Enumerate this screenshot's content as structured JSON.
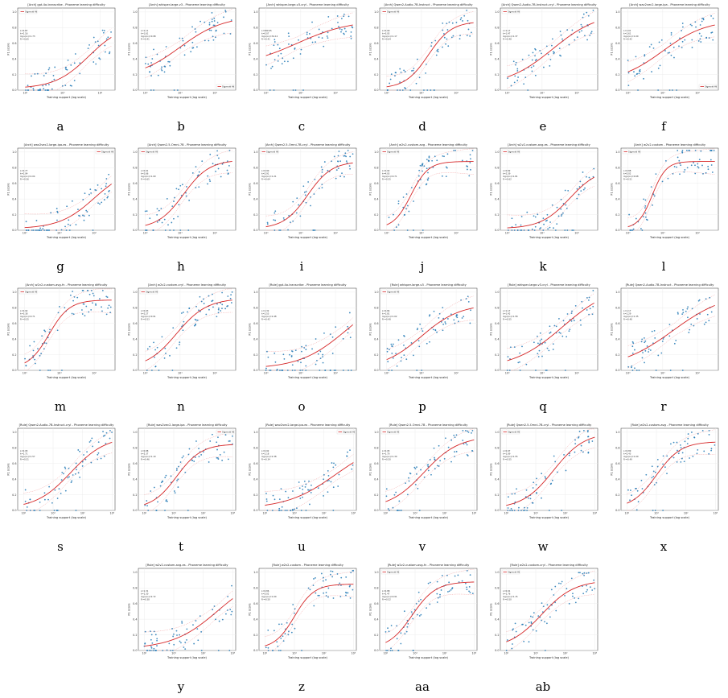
{
  "figure": {
    "common": {
      "xlabel": "Training support (log scale)",
      "ylabel": "F1 score",
      "legend_label": "Sigmoid fit",
      "yticks": [
        "0.0",
        "0.2",
        "0.4",
        "0.6",
        "0.8",
        "1.0"
      ]
    },
    "panels": [
      {
        "letter": "a",
        "title": "[Arch] gpt-4o-transcribe - Phoneme learning difficulty",
        "legend": "top-left",
        "xticks": [
          "10⁰",
          "10¹",
          "10²"
        ],
        "xmax": 2.3,
        "fit": {
          "L": 0.85,
          "k": 2.2,
          "x0": 1.7,
          "b": 0.02
        },
        "stats": [
          "L=0.87",
          "k=2.16",
          "log₁₀(x₀)=1.73",
          "R²=0.65"
        ]
      },
      {
        "letter": "b",
        "title": "[Arch] whisper-large-v3 - Phoneme learning difficulty",
        "legend": "bottom-right",
        "xticks": [
          "10⁰",
          "10¹",
          "10²"
        ],
        "xmax": 2.5,
        "fit": {
          "L": 0.95,
          "k": 1.6,
          "x0": 1.0,
          "b": 0.15
        },
        "stats": [
          "L=1.11",
          "k=1.61",
          "log₁₀(x₀)=0.98",
          "R²=0.41"
        ]
      },
      {
        "letter": "c",
        "title": "[Arch] whisper-large-v3-cryl - Phoneme learning difficulty",
        "legend": "none",
        "xticks": [
          "10⁰",
          "10¹",
          "10²"
        ],
        "xmax": 2.5,
        "fit": {
          "L": 0.9,
          "k": 1.3,
          "x0": 0.9,
          "b": 0.3
        },
        "stats": [
          "L=999.95",
          "k=0.07",
          "log₁₀(x₀)=34.12",
          "R²=0.41"
        ]
      },
      {
        "letter": "d",
        "title": "[Arch] Qwen2-Audio-7B-Instruct - Phoneme learning difficulty",
        "legend": "top-left",
        "xticks": [
          "10⁰",
          "10¹",
          "10²"
        ],
        "xmax": 2.5,
        "fit": {
          "L": 0.88,
          "k": 3.0,
          "x0": 1.2,
          "b": 0.02
        },
        "stats": [
          "L=0.90",
          "k=3.05",
          "log₁₀(x₀)=1.17",
          "R²=0.64"
        ]
      },
      {
        "letter": "e",
        "title": "[Arch] Qwen2-Audio-7B-Instruct-cryl - Phoneme learning difficulty",
        "legend": "top-left",
        "xticks": [
          "10⁰",
          "10¹",
          "10²"
        ],
        "xmax": 2.5,
        "fit": {
          "L": 1.0,
          "k": 1.5,
          "x0": 1.3,
          "b": 0.05
        },
        "stats": [
          "L=1.17",
          "k=1.47",
          "log₁₀(x₀)=1.37",
          "R²=0.48"
        ]
      },
      {
        "letter": "f",
        "title": "[Arch] wav2vec2-large-ipa - Phoneme learning difficulty",
        "legend": "bottom-right",
        "xticks": [
          "10⁰",
          "10¹",
          "10²"
        ],
        "xmax": 2.5,
        "fit": {
          "L": 0.9,
          "k": 1.6,
          "x0": 1.0,
          "b": 0.1
        },
        "stats": [
          "L=1.01",
          "k=1.61",
          "log₁₀(x₀)=1.00",
          "R²=0.42"
        ]
      },
      {
        "letter": "g",
        "title": "[Arch] wav2vec2-large-ipa-es - Phoneme learning difficulty",
        "legend": "top-right",
        "xticks": [
          "10⁰",
          "10¹",
          "10²"
        ],
        "xmax": 2.5,
        "fit": {
          "L": 0.8,
          "k": 2.0,
          "x0": 2.0,
          "b": 0.02
        },
        "stats": [
          "L=0.77",
          "k=2.04",
          "log₁₀(x₀)=2.04",
          "R²=0.56"
        ]
      },
      {
        "letter": "h",
        "title": "[Arch] Qwen2.5-Omni-7B - Phoneme learning difficulty",
        "legend": "top-left",
        "xticks": [
          "10⁰",
          "10¹",
          "10²"
        ],
        "xmax": 2.5,
        "fit": {
          "L": 0.9,
          "k": 2.7,
          "x0": 1.1,
          "b": 0.02
        },
        "stats": [
          "L=0.91",
          "k=2.66",
          "log₁₀(x₀)=1.09",
          "R²=0.65"
        ]
      },
      {
        "letter": "i",
        "title": "[Arch] Qwen2.5-Omni-7B-cryl - Phoneme learning difficulty",
        "legend": "top-left",
        "xticks": [
          "10⁰",
          "10¹",
          "10²"
        ],
        "xmax": 2.5,
        "fit": {
          "L": 0.88,
          "k": 2.9,
          "x0": 1.2,
          "b": 0.02
        },
        "stats": [
          "L=0.90",
          "k=2.91",
          "log₁₀(x₀)=1.21",
          "R²=0.64"
        ]
      },
      {
        "letter": "j",
        "title": "[Arch] w2v2-custom-avg - Phoneme learning difficulty",
        "legend": "top-left",
        "xticks": [
          "10⁰",
          "10¹",
          "10²"
        ],
        "xmax": 2.5,
        "fit": {
          "L": 0.88,
          "k": 4.0,
          "x0": 0.7,
          "b": 0.02
        },
        "stats": [
          "L=0.92",
          "k=4.03",
          "log₁₀(x₀)=0.71",
          "R²=0.55"
        ]
      },
      {
        "letter": "k",
        "title": "[Arch] w2v2-custom-avg-es - Phoneme learning difficulty",
        "legend": "top-left",
        "xticks": [
          "10⁰",
          "10¹",
          "10²"
        ],
        "xmax": 2.5,
        "fit": {
          "L": 0.8,
          "k": 2.4,
          "x0": 1.8,
          "b": 0.02
        },
        "stats": [
          "L=0.82",
          "k=2.39",
          "log₁₀(x₀)=1.81",
          "R²=0.62"
        ]
      },
      {
        "letter": "l",
        "title": "[Arch] w2v2-custom - Phoneme learning difficulty",
        "legend": "top-left",
        "xticks": [
          "10⁰",
          "10¹",
          "10²"
        ],
        "xmax": 2.5,
        "fit": {
          "L": 0.88,
          "k": 5.0,
          "x0": 0.7,
          "b": 0.02
        },
        "stats": [
          "L=0.88",
          "k=5.02",
          "log₁₀(x₀)=0.68",
          "R²=0.51"
        ]
      },
      {
        "letter": "m",
        "title": "[Arch] w2v2-custom-avg-fn - Phoneme learning difficulty",
        "legend": "top-left",
        "xticks": [
          "10⁰",
          "10¹",
          "10²"
        ],
        "xmax": 2.5,
        "fit": {
          "L": 0.9,
          "k": 3.4,
          "x0": 0.7,
          "b": 0.02
        },
        "stats": [
          "L=0.92",
          "k=3.38",
          "log₁₀(x₀)=0.71",
          "R²=0.55"
        ]
      },
      {
        "letter": "n",
        "title": "[Arch] w2v2-custom-cryl - Phoneme learning difficulty",
        "legend": "top-left",
        "xticks": [
          "10⁰",
          "10¹",
          "10²"
        ],
        "xmax": 2.5,
        "fit": {
          "L": 0.92,
          "k": 2.3,
          "x0": 0.9,
          "b": 0.02
        },
        "stats": [
          "L=0.93",
          "k=2.27",
          "log₁₀(x₀)=0.91",
          "R²=0.53"
        ]
      },
      {
        "letter": "o",
        "title": "[Rule] gpt-4o-transcribe - Phoneme learning difficulty",
        "legend": "none",
        "xticks": [
          "10⁰",
          "10¹",
          "10²"
        ],
        "xmax": 2.5,
        "fit": {
          "L": 1.0,
          "k": 1.5,
          "x0": 2.3,
          "b": 0.02
        },
        "stats": [
          "L=1.32",
          "k=1.53",
          "log₁₀(x₀)=2.48",
          "R²=0.42"
        ]
      },
      {
        "letter": "p",
        "title": "[Rule] whisper-large-v3 - Phoneme learning difficulty",
        "legend": "top-left",
        "xticks": [
          "10⁰",
          "10¹",
          "10²"
        ],
        "xmax": 2.5,
        "fit": {
          "L": 0.85,
          "k": 1.8,
          "x0": 1.0,
          "b": 0.02
        },
        "stats": [
          "L=0.84",
          "k=1.81",
          "log₁₀(x₀)=1.02",
          "R²=0.48"
        ]
      },
      {
        "letter": "q",
        "title": "[Rule] whisper-large-v3-cryl - Phoneme learning difficulty",
        "legend": "none",
        "xticks": [
          "10⁰",
          "10¹",
          "10²"
        ],
        "xmax": 2.5,
        "fit": {
          "L": 1.1,
          "k": 1.4,
          "x0": 1.6,
          "b": 0.02
        },
        "stats": [
          "L=1.17",
          "k=1.42",
          "log₁₀(x₀)=1.58",
          "R²=0.55"
        ]
      },
      {
        "letter": "r",
        "title": "[Rule] Qwen2-Audio-7B-Instruct - Phoneme learning difficulty",
        "legend": "none",
        "xticks": [
          "10⁰",
          "10¹",
          "10²"
        ],
        "xmax": 2.5,
        "fit": {
          "L": 1.0,
          "k": 1.3,
          "x0": 1.3,
          "b": 0.02
        },
        "stats": [
          "L=1.17",
          "k=1.29",
          "log₁₀(x₀)=1.35",
          "R²=0.48"
        ]
      },
      {
        "letter": "s",
        "title": "[Rule] Qwen2-Audio-7B-Instruct-cryl - Phoneme learning difficulty",
        "legend": "none",
        "xticks": [
          "10⁰",
          "10¹",
          "10²",
          "10³"
        ],
        "xmax": 3.0,
        "fit": {
          "L": 0.95,
          "k": 1.7,
          "x0": 1.6,
          "b": 0.02
        },
        "stats": [
          "L=0.95",
          "k=1.71",
          "log₁₀(x₀)=1.57",
          "R²=0.51"
        ]
      },
      {
        "letter": "t",
        "title": "[Rule] wav2vec2-large-ipa - Phoneme learning difficulty",
        "legend": "top-right",
        "xticks": [
          "10⁰",
          "10¹",
          "10²",
          "10³"
        ],
        "xmax": 3.0,
        "fit": {
          "L": 0.85,
          "k": 2.4,
          "x0": 1.1,
          "b": 0.02
        },
        "stats": [
          "L=0.88",
          "k=2.37",
          "log₁₀(x₀)=1.10",
          "R²=0.46"
        ]
      },
      {
        "letter": "u",
        "title": "[Rule] wav2vec2-large-ipa-es - Phoneme learning difficulty",
        "legend": "top-right",
        "xticks": [
          "10⁰",
          "10¹",
          "10²",
          "10³"
        ],
        "xmax": 3.0,
        "fit": {
          "L": 0.9,
          "k": 1.2,
          "x0": 2.4,
          "b": 0.02
        },
        "stats": [
          "L=0.92",
          "k=1.18",
          "log₁₀(x₀)=2.38",
          "R²=0.34"
        ]
      },
      {
        "letter": "v",
        "title": "[Rule] Qwen2.5-Omni-7B - Phoneme learning difficulty",
        "legend": "top-left",
        "xticks": [
          "10⁰",
          "10¹",
          "10²",
          "10³"
        ],
        "xmax": 3.0,
        "fit": {
          "L": 0.95,
          "k": 1.7,
          "x0": 1.3,
          "b": 0.02
        },
        "stats": [
          "L=0.95",
          "k=1.70",
          "log₁₀(x₀)=1.30",
          "R²=0.50"
        ]
      },
      {
        "letter": "w",
        "title": "[Rule] Qwen2.5-Omni-7B-cryl - Phoneme learning difficulty",
        "legend": "top-left",
        "xticks": [
          "10⁰",
          "10¹",
          "10²",
          "10³"
        ],
        "xmax": 3.0,
        "fit": {
          "L": 1.0,
          "k": 1.9,
          "x0": 1.6,
          "b": 0.02
        },
        "stats": [
          "L=0.97",
          "k=1.89",
          "log₁₀(x₀)=1.55",
          "R²=0.55"
        ]
      },
      {
        "letter": "x",
        "title": "[Rule] w2v2-custom-avg - Phoneme learning difficulty",
        "legend": "none",
        "xticks": [
          "10⁰",
          "10¹",
          "10²",
          "10³"
        ],
        "xmax": 3.0,
        "fit": {
          "L": 0.88,
          "k": 2.4,
          "x0": 1.0,
          "b": 0.02
        },
        "stats": [
          "L=0.89",
          "k=2.43",
          "log₁₀(x₀)=1.00",
          "R²=0.49"
        ]
      },
      {
        "letter": "y",
        "title": "[Rule] w2v2-custom-avg-es - Phoneme learning difficulty",
        "legend": "none",
        "xticks": [
          "10⁰",
          "10¹",
          "10²",
          "10³"
        ],
        "xmax": 3.0,
        "fit": {
          "L": 1.0,
          "k": 1.3,
          "x0": 2.5,
          "b": 0.02
        },
        "stats": [
          "L=1.31",
          "k=1.30",
          "log₁₀(x₀)=2.72",
          "R²=0.38"
        ]
      },
      {
        "letter": "z",
        "title": "[Rule] w2v2-custom - Phoneme learning difficulty",
        "legend": "none",
        "xticks": [
          "10⁰",
          "10¹",
          "10²",
          "10³"
        ],
        "xmax": 3.0,
        "fit": {
          "L": 0.85,
          "k": 3.0,
          "x0": 1.0,
          "b": 0.02
        },
        "stats": [
          "L=0.86",
          "k=3.02",
          "log₁₀(x₀)=1.00",
          "R²=0.50"
        ]
      },
      {
        "letter": "aa",
        "title": "[Rule] w2v2-custom-avg-fn - Phoneme learning difficulty",
        "legend": "top-left",
        "xticks": [
          "10⁰",
          "10¹",
          "10²",
          "10³"
        ],
        "xmax": 3.0,
        "fit": {
          "L": 0.88,
          "k": 2.5,
          "x0": 0.9,
          "b": 0.02
        },
        "stats": [
          "L=0.88",
          "k=2.47",
          "log₁₀(x₀)=0.91",
          "R²=0.52"
        ]
      },
      {
        "letter": "ab",
        "title": "[Rule] w2v2-custom-cryl - Phoneme learning difficulty",
        "legend": "top-left",
        "xticks": [
          "10⁰",
          "10¹",
          "10²",
          "10³"
        ],
        "xmax": 3.0,
        "fit": {
          "L": 0.9,
          "k": 1.8,
          "x0": 1.2,
          "b": 0.02
        },
        "stats": [
          "L=0.91",
          "k=1.76",
          "log₁₀(x₀)=1.15",
          "R²=0.50"
        ]
      }
    ]
  },
  "colors": {
    "fit_line": "#d62728",
    "ci_band": "#f4a3a3",
    "points": "#1f77b4",
    "grid": "#e8e8e8",
    "axis": "#333333"
  },
  "chart_data": {
    "type": "scatter",
    "description_source": "28 panels of phoneme F1 score vs training support with sigmoid fits; curves reconstructed from fitted parameters",
    "xlabel": "Training support (log scale)",
    "ylabel": "F1 score",
    "ylim": [
      0,
      1.05
    ],
    "x_scale": "log",
    "legend": "Sigmoid fit",
    "grid": true
  }
}
